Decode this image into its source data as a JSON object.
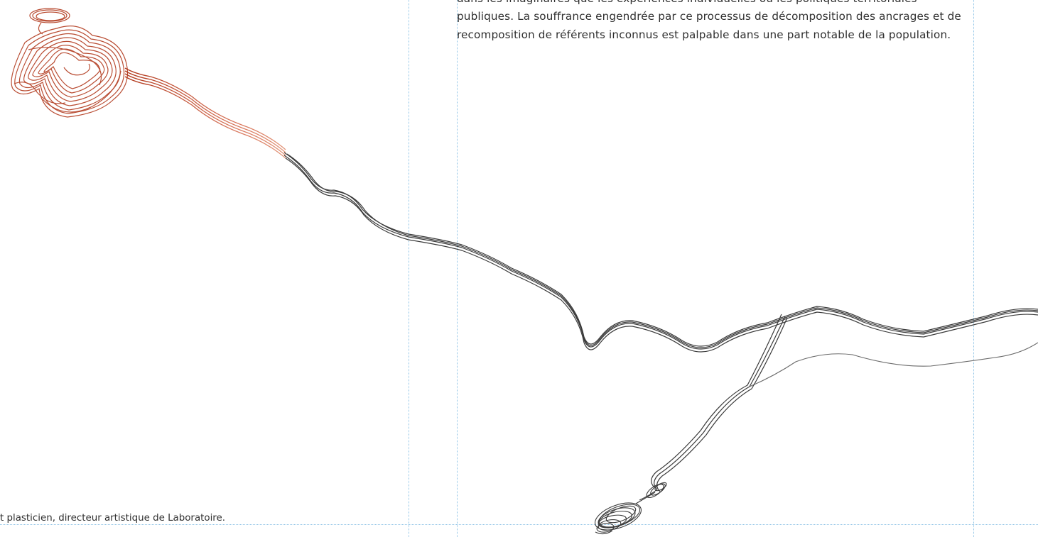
{
  "article": {
    "paragraph": "dans les imaginaires que les expériences individuelles ou les politiques territoriales publiques. La souffrance engendrée par ce processus de décomposition des ancrages et de recomposition de référents inconnus est palpable dans une part notable de la population."
  },
  "caption": {
    "text": "t plasticien, directeur artistique de Laboratoire."
  },
  "colors": {
    "guide": "#8ec3e6",
    "ink_red": "#b23a1e",
    "ink_dark": "#3a3a3a"
  }
}
